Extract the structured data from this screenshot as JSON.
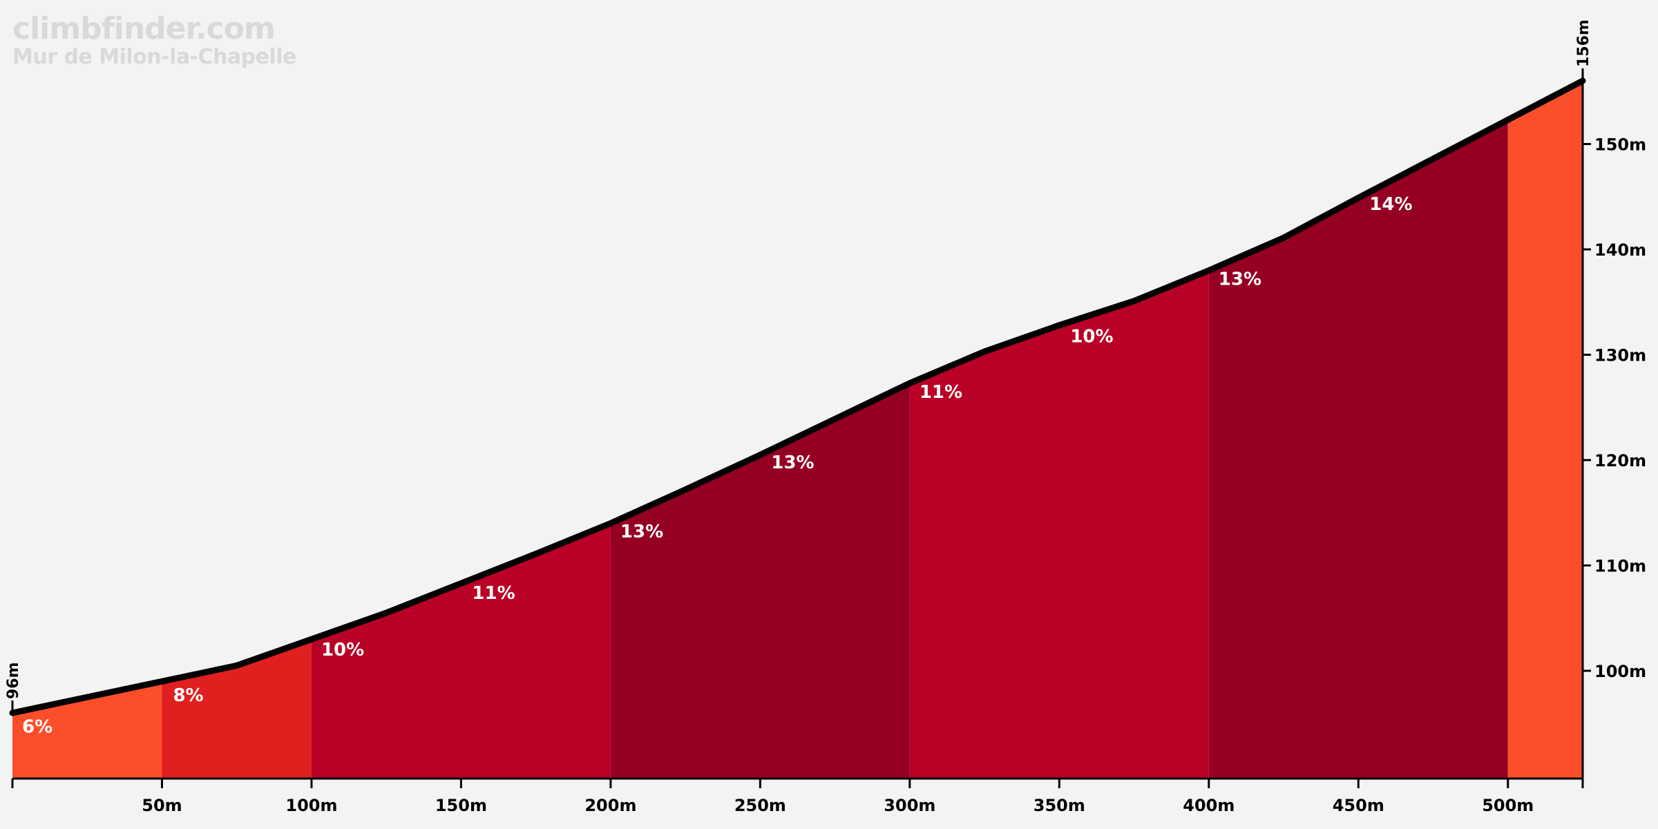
{
  "watermark": {
    "site": "climbfinder.com",
    "climb_name": "Mur de Milon-la-Chapelle"
  },
  "chart_data": {
    "type": "area",
    "title": "Mur de Milon-la-Chapelle",
    "xlabel": "",
    "ylabel": "",
    "x_unit": "m",
    "y_unit": "m",
    "xlim": [
      0,
      525
    ],
    "ylim": [
      90,
      156
    ],
    "start_elevation_label": "96m",
    "end_elevation_label": "156m",
    "profile": {
      "x": [
        0,
        25,
        50,
        75,
        100,
        125,
        150,
        175,
        200,
        225,
        250,
        275,
        300,
        325,
        350,
        375,
        400,
        425,
        450,
        475,
        500,
        525
      ],
      "y": [
        96,
        97.5,
        99,
        100.5,
        103,
        105.5,
        108.3,
        111.1,
        114,
        117.2,
        120.5,
        123.9,
        127.3,
        130.3,
        132.8,
        135.1,
        138,
        141.1,
        144.9,
        148.6,
        152.3,
        156
      ]
    },
    "segments": [
      {
        "start": 0,
        "end": 50,
        "gradient": 6,
        "label": "6%",
        "color": "#fd4e2b"
      },
      {
        "start": 50,
        "end": 100,
        "gradient": 8,
        "label": "8%",
        "color": "#e01f1f"
      },
      {
        "start": 100,
        "end": 200,
        "gradient": 10,
        "label": "10%",
        "color": "#b90026"
      },
      {
        "start": 200,
        "end": 300,
        "gradient": 11,
        "label": "11%",
        "color": "#950022"
      },
      {
        "start": 300,
        "end": 400,
        "gradient": 13,
        "label": "13%",
        "color": "#b90026"
      },
      {
        "start": 400,
        "end": 500,
        "gradient": 13,
        "label": "13%",
        "color": "#950022"
      },
      {
        "start": 500,
        "end": 525,
        "gradient": 10,
        "label": "",
        "color": "#fd4e2b"
      }
    ],
    "segment_labels": [
      {
        "x": 0,
        "label": "6%"
      },
      {
        "x": 50,
        "label": "8%"
      },
      {
        "x": 100,
        "label": "10%"
      },
      {
        "x": 150,
        "label": "11%"
      },
      {
        "x": 200,
        "label": "13%"
      },
      {
        "x": 250,
        "label": "13%"
      },
      {
        "x": 300,
        "label": "11%"
      },
      {
        "x": 350,
        "label": "10%"
      },
      {
        "x": 400,
        "label": "13%"
      },
      {
        "x": 450,
        "label": "14%"
      }
    ],
    "x_ticks": [
      {
        "value": 50,
        "label": "50m"
      },
      {
        "value": 100,
        "label": "100m"
      },
      {
        "value": 150,
        "label": "150m"
      },
      {
        "value": 200,
        "label": "200m"
      },
      {
        "value": 250,
        "label": "250m"
      },
      {
        "value": 300,
        "label": "300m"
      },
      {
        "value": 350,
        "label": "350m"
      },
      {
        "value": 400,
        "label": "400m"
      },
      {
        "value": 450,
        "label": "450m"
      },
      {
        "value": 500,
        "label": "500m"
      }
    ],
    "y_ticks": [
      {
        "value": 100,
        "label": "100m"
      },
      {
        "value": 110,
        "label": "110m"
      },
      {
        "value": 120,
        "label": "120m"
      },
      {
        "value": 130,
        "label": "130m"
      },
      {
        "value": 140,
        "label": "140m"
      },
      {
        "value": 150,
        "label": "150m"
      }
    ],
    "colors": {
      "background": "#f3f3f3",
      "line": "#000000",
      "label_text": "#ffffff",
      "axis": "#000000"
    }
  }
}
